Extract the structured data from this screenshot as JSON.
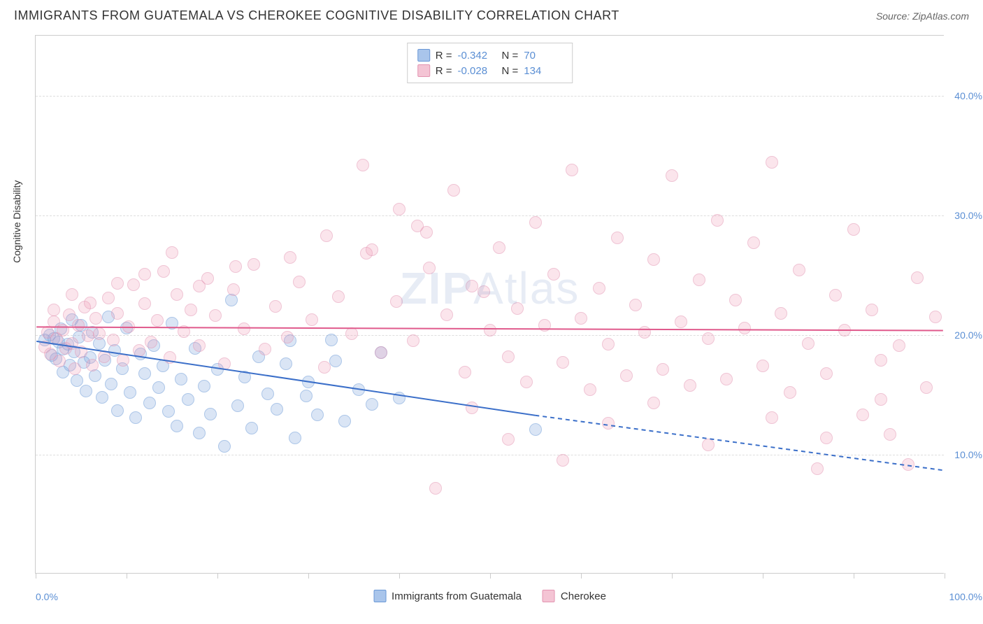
{
  "header": {
    "title": "IMMIGRANTS FROM GUATEMALA VS CHEROKEE COGNITIVE DISABILITY CORRELATION CHART",
    "source": "Source: ZipAtlas.com"
  },
  "watermark": {
    "zip": "ZIP",
    "atlas": "Atlas"
  },
  "chart": {
    "type": "scatter",
    "background_color": "#ffffff",
    "grid_color": "#dddddd",
    "border_color": "#cccccc",
    "axis_label_color": "#333333",
    "tick_label_color": "#5b8fd4",
    "ylabel": "Cognitive Disability",
    "xlim": [
      0,
      100
    ],
    "ylim": [
      0,
      45
    ],
    "y_ticks": [
      {
        "value": 10,
        "label": "10.0%"
      },
      {
        "value": 20,
        "label": "20.0%"
      },
      {
        "value": 30,
        "label": "30.0%"
      },
      {
        "value": 40,
        "label": "40.0%"
      }
    ],
    "x_tick_positions": [
      0,
      10,
      20,
      30,
      40,
      50,
      60,
      70,
      80,
      90,
      100
    ],
    "x_label_left": {
      "text": "0.0%",
      "x": 0
    },
    "x_label_right": {
      "text": "100.0%",
      "x": 100
    },
    "marker_size": 18,
    "series": [
      {
        "name": "Immigrants from Guatemala",
        "color_fill": "rgba(120,160,220,0.5)",
        "color_stroke": "#6a98d6",
        "swatch_color": "#a9c5eb",
        "swatch_border": "#6a98d6",
        "R": "-0.342",
        "N": "70",
        "trend": {
          "x1": 0,
          "y1": 19.4,
          "x2_solid": 55,
          "y2_solid": 13.2,
          "x2_dash": 100,
          "y2_dash": 8.6,
          "color": "#3b6fc9",
          "width": 2
        },
        "points": [
          [
            1,
            19.6
          ],
          [
            1.5,
            20
          ],
          [
            1.8,
            18.3
          ],
          [
            2,
            19.7
          ],
          [
            2.2,
            18
          ],
          [
            2.5,
            19.4
          ],
          [
            2.8,
            20.5
          ],
          [
            3,
            18.8
          ],
          [
            3,
            16.9
          ],
          [
            3.5,
            19.2
          ],
          [
            3.8,
            17.5
          ],
          [
            4,
            21.3
          ],
          [
            4.2,
            18.6
          ],
          [
            4.5,
            16.2
          ],
          [
            4.8,
            19.8
          ],
          [
            5,
            20.8
          ],
          [
            5.3,
            17.7
          ],
          [
            5.5,
            15.3
          ],
          [
            6,
            18.1
          ],
          [
            6.2,
            20.2
          ],
          [
            6.5,
            16.6
          ],
          [
            7,
            19.3
          ],
          [
            7.3,
            14.8
          ],
          [
            7.6,
            17.9
          ],
          [
            8,
            21.5
          ],
          [
            8.3,
            15.9
          ],
          [
            8.7,
            18.7
          ],
          [
            9,
            13.7
          ],
          [
            9.5,
            17.2
          ],
          [
            10,
            20.6
          ],
          [
            10.4,
            15.2
          ],
          [
            11,
            13.1
          ],
          [
            11.5,
            18.4
          ],
          [
            12,
            16.8
          ],
          [
            12.5,
            14.3
          ],
          [
            13,
            19.1
          ],
          [
            13.5,
            15.6
          ],
          [
            14,
            17.4
          ],
          [
            14.6,
            13.6
          ],
          [
            15,
            21
          ],
          [
            15.5,
            12.4
          ],
          [
            16,
            16.3
          ],
          [
            16.8,
            14.6
          ],
          [
            17.5,
            18.9
          ],
          [
            18,
            11.8
          ],
          [
            18.5,
            15.7
          ],
          [
            19.2,
            13.4
          ],
          [
            20,
            17.1
          ],
          [
            20.8,
            10.7
          ],
          [
            21.5,
            22.9
          ],
          [
            22.2,
            14.1
          ],
          [
            23,
            16.5
          ],
          [
            23.8,
            12.2
          ],
          [
            24.5,
            18.2
          ],
          [
            25.5,
            15.1
          ],
          [
            26.5,
            13.8
          ],
          [
            27.5,
            17.6
          ],
          [
            28.5,
            11.4
          ],
          [
            29.8,
            14.9
          ],
          [
            31,
            13.3
          ],
          [
            32.5,
            19.6
          ],
          [
            34,
            12.8
          ],
          [
            35.5,
            15.4
          ],
          [
            37,
            14.2
          ],
          [
            28,
            19.5
          ],
          [
            30,
            16.1
          ],
          [
            33,
            17.8
          ],
          [
            38,
            18.5
          ],
          [
            40,
            14.7
          ],
          [
            55,
            12.1
          ]
        ]
      },
      {
        "name": "Cherokee",
        "color_fill": "rgba(240,150,180,0.45)",
        "color_stroke": "#e394b1",
        "swatch_color": "#f4c4d4",
        "swatch_border": "#e394b1",
        "R": "-0.028",
        "N": "134",
        "trend": {
          "x1": 0,
          "y1": 20.6,
          "x2_solid": 100,
          "y2_solid": 20.3,
          "x2_dash": 100,
          "y2_dash": 20.3,
          "color": "#e05a8c",
          "width": 2
        },
        "points": [
          [
            1,
            19
          ],
          [
            1.3,
            20.2
          ],
          [
            1.6,
            18.4
          ],
          [
            2,
            21.1
          ],
          [
            2.3,
            19.7
          ],
          [
            2.6,
            17.8
          ],
          [
            3,
            20.4
          ],
          [
            3.3,
            18.9
          ],
          [
            3.7,
            21.7
          ],
          [
            4,
            19.3
          ],
          [
            4.3,
            17.2
          ],
          [
            4.7,
            20.8
          ],
          [
            5,
            18.6
          ],
          [
            5.4,
            22.3
          ],
          [
            5.8,
            19.9
          ],
          [
            6.2,
            17.5
          ],
          [
            6.6,
            21.4
          ],
          [
            7,
            20.1
          ],
          [
            7.5,
            18.2
          ],
          [
            8,
            23.1
          ],
          [
            8.5,
            19.6
          ],
          [
            9,
            21.8
          ],
          [
            9.6,
            17.9
          ],
          [
            10.2,
            20.7
          ],
          [
            10.8,
            24.2
          ],
          [
            11.4,
            18.7
          ],
          [
            12,
            22.6
          ],
          [
            12.7,
            19.4
          ],
          [
            13.4,
            21.2
          ],
          [
            14.1,
            25.3
          ],
          [
            14.8,
            18.1
          ],
          [
            15.5,
            23.4
          ],
          [
            16.3,
            20.3
          ],
          [
            17.1,
            22.1
          ],
          [
            18,
            19.1
          ],
          [
            18.9,
            24.7
          ],
          [
            19.8,
            21.6
          ],
          [
            20.8,
            17.6
          ],
          [
            21.8,
            23.8
          ],
          [
            22.9,
            20.5
          ],
          [
            24,
            25.9
          ],
          [
            25.2,
            18.8
          ],
          [
            26.4,
            22.4
          ],
          [
            27.7,
            19.8
          ],
          [
            29,
            24.4
          ],
          [
            30.4,
            21.3
          ],
          [
            31.8,
            17.3
          ],
          [
            33.3,
            23.2
          ],
          [
            34.8,
            20.1
          ],
          [
            36.4,
            26.8
          ],
          [
            38,
            18.5
          ],
          [
            39.7,
            22.8
          ],
          [
            41.5,
            19.5
          ],
          [
            43.3,
            25.6
          ],
          [
            45.2,
            21.7
          ],
          [
            47.2,
            16.9
          ],
          [
            49.3,
            23.6
          ],
          [
            36,
            34.2
          ],
          [
            40,
            30.5
          ],
          [
            43,
            28.6
          ],
          [
            46,
            32.1
          ],
          [
            48,
            24.1
          ],
          [
            50,
            20.4
          ],
          [
            51,
            27.3
          ],
          [
            52,
            18.2
          ],
          [
            53,
            22.2
          ],
          [
            54,
            16.1
          ],
          [
            55,
            29.4
          ],
          [
            56,
            20.8
          ],
          [
            57,
            25.1
          ],
          [
            58,
            17.7
          ],
          [
            59,
            33.8
          ],
          [
            60,
            21.4
          ],
          [
            61,
            15.4
          ],
          [
            62,
            23.9
          ],
          [
            63,
            19.2
          ],
          [
            64,
            28.1
          ],
          [
            65,
            16.6
          ],
          [
            66,
            22.5
          ],
          [
            67,
            20.2
          ],
          [
            68,
            26.3
          ],
          [
            69,
            17.1
          ],
          [
            70,
            33.3
          ],
          [
            71,
            21.1
          ],
          [
            72,
            15.8
          ],
          [
            73,
            24.6
          ],
          [
            74,
            19.7
          ],
          [
            75,
            29.6
          ],
          [
            76,
            16.3
          ],
          [
            77,
            22.9
          ],
          [
            78,
            20.6
          ],
          [
            79,
            27.7
          ],
          [
            80,
            17.4
          ],
          [
            81,
            34.4
          ],
          [
            82,
            21.8
          ],
          [
            83,
            15.2
          ],
          [
            84,
            25.4
          ],
          [
            85,
            19.3
          ],
          [
            86,
            8.8
          ],
          [
            87,
            16.8
          ],
          [
            88,
            23.3
          ],
          [
            89,
            20.4
          ],
          [
            90,
            28.8
          ],
          [
            91,
            13.3
          ],
          [
            92,
            22.1
          ],
          [
            93,
            17.9
          ],
          [
            94,
            11.7
          ],
          [
            95,
            19.1
          ],
          [
            96,
            9.2
          ],
          [
            97,
            24.8
          ],
          [
            98,
            15.6
          ],
          [
            99,
            21.5
          ],
          [
            44,
            7.2
          ],
          [
            48,
            13.9
          ],
          [
            52,
            11.3
          ],
          [
            58,
            9.5
          ],
          [
            63,
            12.6
          ],
          [
            68,
            14.3
          ],
          [
            74,
            10.8
          ],
          [
            81,
            13.1
          ],
          [
            87,
            11.4
          ],
          [
            93,
            14.6
          ],
          [
            28,
            26.5
          ],
          [
            32,
            28.3
          ],
          [
            37,
            27.1
          ],
          [
            42,
            29.1
          ],
          [
            18,
            24.1
          ],
          [
            22,
            25.7
          ],
          [
            15,
            26.9
          ],
          [
            12,
            25.1
          ],
          [
            9,
            24.3
          ],
          [
            6,
            22.7
          ],
          [
            4,
            23.4
          ],
          [
            2,
            22.1
          ]
        ]
      }
    ],
    "stats_labels": {
      "R": "R =",
      "N": "N ="
    },
    "legend_bottom": [
      {
        "key": 0
      },
      {
        "key": 1
      }
    ]
  }
}
